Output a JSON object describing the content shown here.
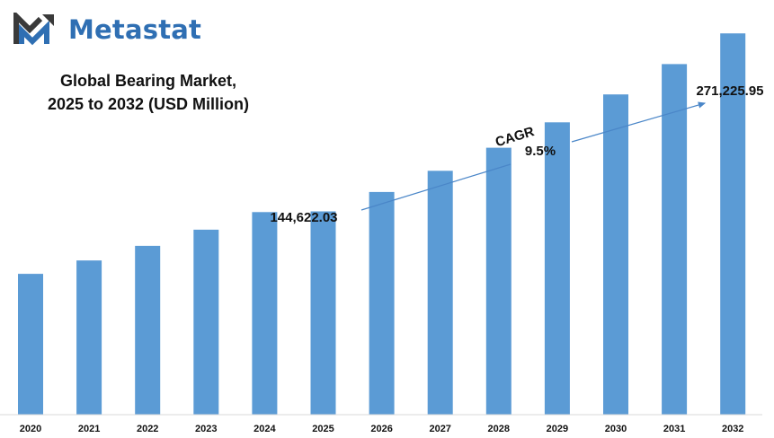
{
  "logo": {
    "text": "Metastat",
    "icon": "metastat-m-icon"
  },
  "colors": {
    "bar": "#5b9bd5",
    "brand": "#2f6fb3",
    "arrow": "#4a86c8",
    "logo_dark": "#3a3a3a"
  },
  "chart_data": {
    "type": "bar",
    "title": "Global Bearing Market,",
    "subtitle": "2025 to 2032 (USD Million)",
    "categories": [
      "2020",
      "2021",
      "2022",
      "2023",
      "2024",
      "2025",
      "2026",
      "2027",
      "2028",
      "2029",
      "2030",
      "2031",
      "2032"
    ],
    "values": [
      100200,
      109700,
      120100,
      131600,
      144100,
      144622.03,
      158400,
      173500,
      189900,
      208000,
      227800,
      249400,
      271225.95
    ],
    "ylim": [
      0,
      295000
    ],
    "grid": false,
    "legend": "none",
    "annotations": {
      "start_label": "144,622.03",
      "end_label": "271,225.95",
      "cagr_label": "CAGR",
      "cagr_value": "9.5%"
    }
  }
}
